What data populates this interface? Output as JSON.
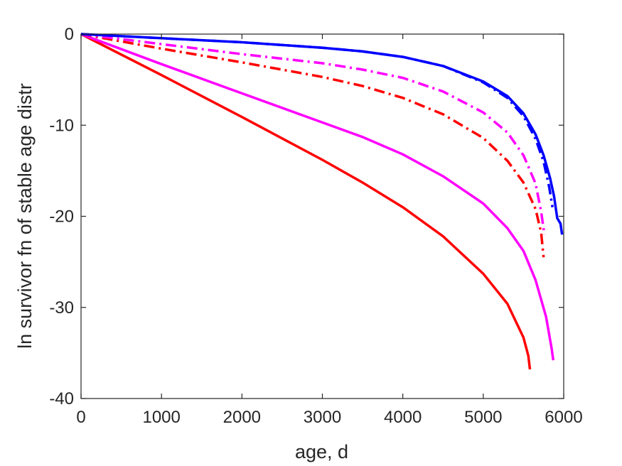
{
  "chart_data": {
    "type": "line",
    "title": "",
    "xlabel": "age, d",
    "ylabel": "ln survivor fn of stable age distr",
    "xlim": [
      0,
      6000
    ],
    "ylim": [
      -40,
      0
    ],
    "xticks": [
      0,
      1000,
      2000,
      3000,
      4000,
      5000,
      6000
    ],
    "yticks": [
      0,
      -10,
      -20,
      -30,
      -40
    ],
    "xtick_labels": [
      "0",
      "1000",
      "2000",
      "3000",
      "4000",
      "5000",
      "6000"
    ],
    "ytick_labels": [
      "0",
      "-10",
      "-20",
      "-30",
      "-40"
    ],
    "grid": false,
    "legend": "none",
    "series": [
      {
        "color": "#ff0000",
        "style": "solid",
        "x": [
          0,
          1000,
          2000,
          3000,
          3500,
          4000,
          4500,
          5000,
          5300,
          5500,
          5560,
          5580
        ],
        "y": [
          0,
          -4.5,
          -9.1,
          -13.8,
          -16.3,
          -19.0,
          -22.2,
          -26.3,
          -29.6,
          -33.3,
          -35.3,
          -36.8
        ]
      },
      {
        "color": "#ff00ff",
        "style": "solid",
        "x": [
          0,
          1000,
          2000,
          3000,
          3500,
          4000,
          4500,
          5000,
          5300,
          5500,
          5650,
          5780,
          5850,
          5870
        ],
        "y": [
          0,
          -3.3,
          -6.5,
          -9.7,
          -11.3,
          -13.2,
          -15.6,
          -18.6,
          -21.3,
          -23.8,
          -27.0,
          -31.0,
          -34.5,
          -35.8
        ]
      },
      {
        "color": "#ff0000",
        "style": "dashdot",
        "x": [
          0,
          1000,
          2000,
          3000,
          3500,
          4000,
          4500,
          5000,
          5300,
          5500,
          5650,
          5720,
          5750
        ],
        "y": [
          0,
          -1.6,
          -3.1,
          -4.7,
          -5.7,
          -7.0,
          -8.8,
          -11.4,
          -13.9,
          -16.3,
          -19.2,
          -21.8,
          -24.5
        ]
      },
      {
        "color": "#ff00ff",
        "style": "dashdot",
        "x": [
          0,
          1000,
          2000,
          3000,
          3500,
          4000,
          4500,
          5000,
          5300,
          5500,
          5650,
          5720,
          5760
        ],
        "y": [
          0,
          -1.1,
          -2.2,
          -3.2,
          -3.9,
          -4.8,
          -6.3,
          -8.6,
          -10.8,
          -13.3,
          -16.4,
          -19.5,
          -22.0
        ]
      },
      {
        "color": "#0000ff",
        "style": "dashdot",
        "x": [
          0,
          1000,
          2000,
          3000,
          3500,
          4000,
          4500,
          5000,
          5300,
          5500,
          5650,
          5750,
          5820,
          5860
        ],
        "y": [
          0,
          -0.45,
          -0.9,
          -1.5,
          -1.9,
          -2.5,
          -3.5,
          -5.3,
          -7.0,
          -9.0,
          -11.5,
          -14.0,
          -16.8,
          -19.0
        ]
      },
      {
        "color": "#0000ff",
        "style": "solid",
        "x": [
          0,
          1000,
          2000,
          3000,
          3500,
          4000,
          4500,
          5000,
          5300,
          5500,
          5650,
          5750,
          5830,
          5880,
          5920,
          5960,
          5980
        ],
        "y": [
          0,
          -0.45,
          -0.9,
          -1.5,
          -1.9,
          -2.5,
          -3.5,
          -5.2,
          -6.8,
          -8.7,
          -11.0,
          -13.3,
          -15.8,
          -17.8,
          -20.2,
          -20.8,
          -22.0
        ]
      }
    ]
  }
}
